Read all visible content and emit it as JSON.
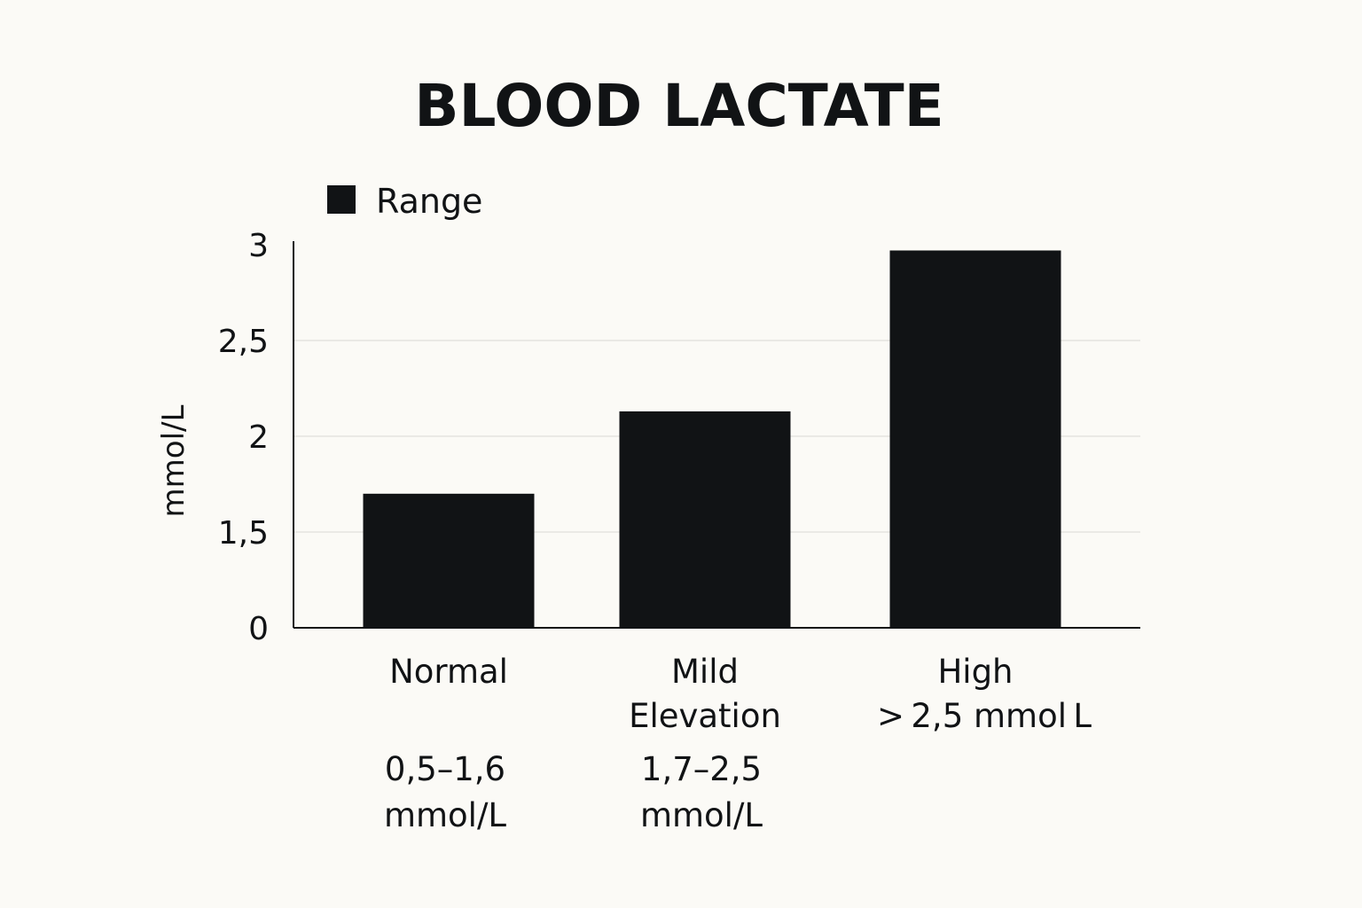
{
  "chart_data": {
    "type": "bar",
    "title": "BLOOD LACTATE",
    "ylabel": "mmol/L",
    "xlabel": "",
    "legend": {
      "position": "top-left",
      "entries": [
        "Range"
      ]
    },
    "categories": [
      {
        "name_lines": [
          "Normal"
        ],
        "range_lines": [
          "0,5–1,6",
          "mmol/L"
        ]
      },
      {
        "name_lines": [
          "Mild",
          "Elevation"
        ],
        "range_lines": [
          "1,7–2,5",
          "mmol/L"
        ]
      },
      {
        "name_lines": [
          "High",
          "> 2,5 mmol L"
        ],
        "range_lines": []
      }
    ],
    "series": [
      {
        "name": "Range",
        "values": [
          1.7,
          2.13,
          2.97
        ]
      }
    ],
    "y_ticks": [
      {
        "value": 0,
        "label": "0"
      },
      {
        "value": 1.5,
        "label": "1,5"
      },
      {
        "value": 2,
        "label": "2"
      },
      {
        "value": 2.5,
        "label": "2,5"
      },
      {
        "value": 3,
        "label": "3"
      }
    ],
    "grid": true,
    "colors": {
      "bar": "#111315",
      "axis": "#111315",
      "grid": "#e4e3df",
      "background": "#fbfaf6",
      "text": "#111315"
    }
  }
}
